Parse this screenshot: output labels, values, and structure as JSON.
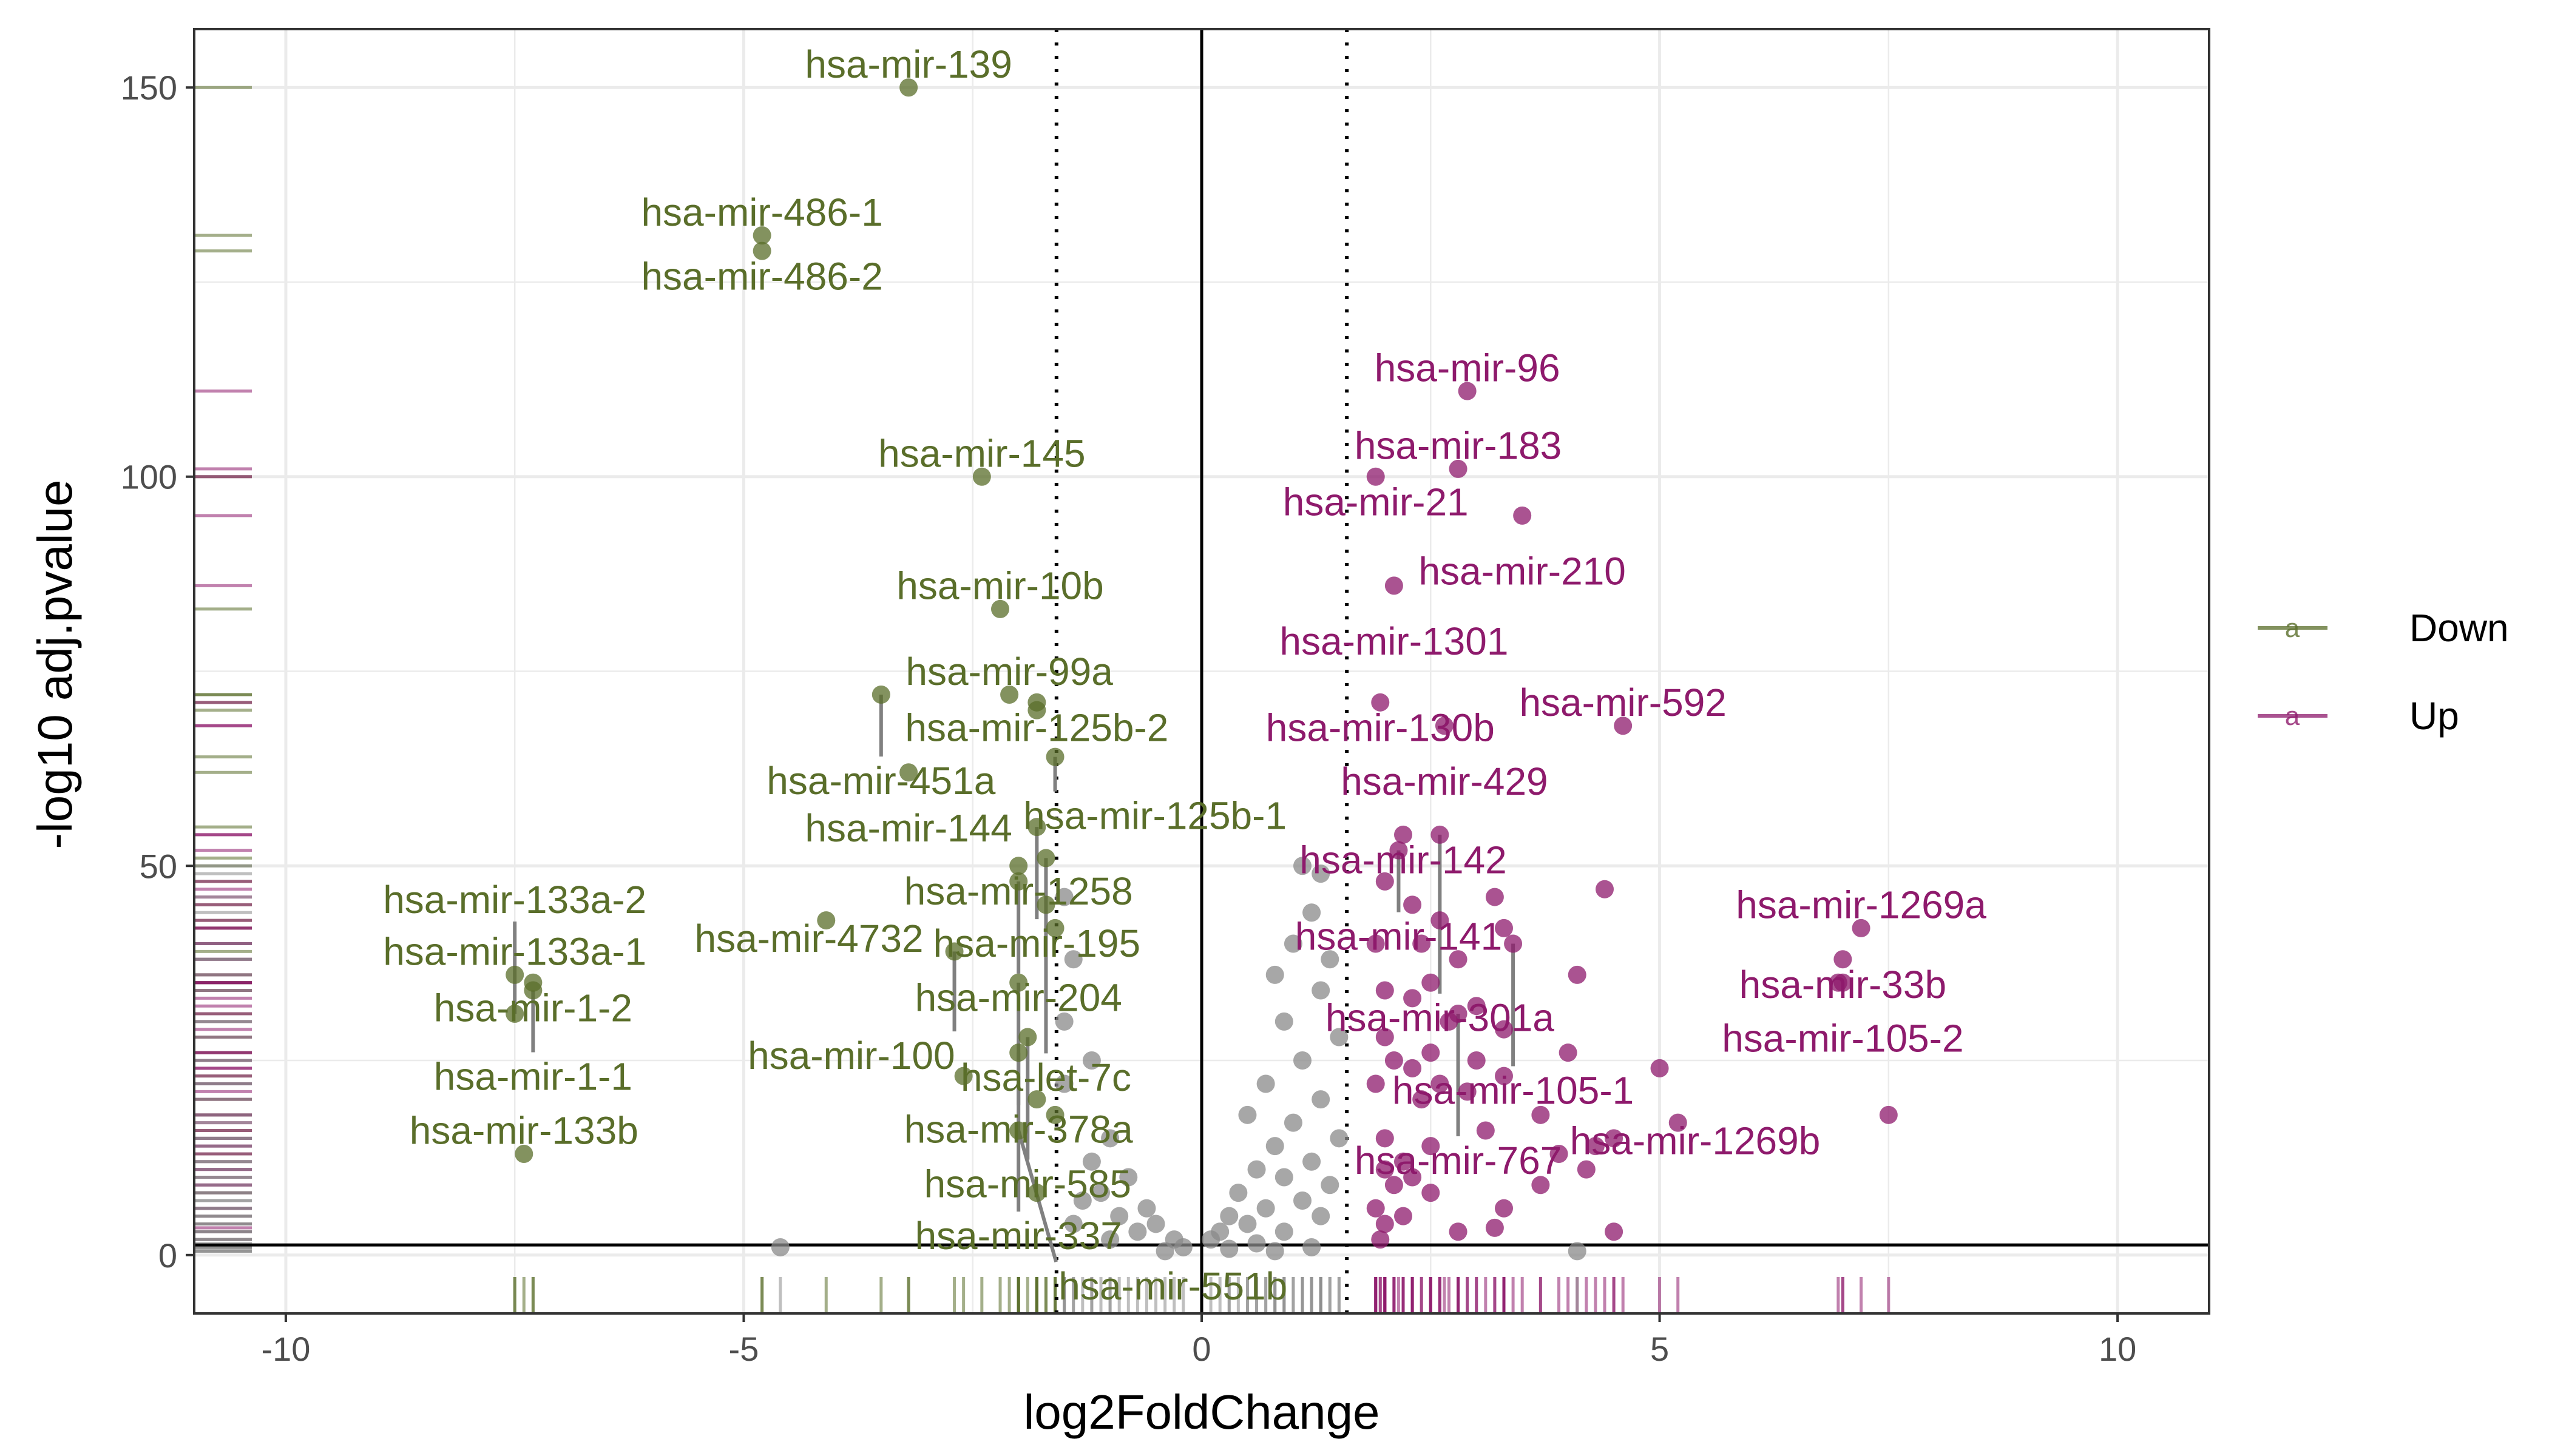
{
  "chart_data": {
    "type": "scatter",
    "title": "",
    "xlabel": "log2FoldChange",
    "ylabel": "-log10 adj.pvalue",
    "xlim": [
      -11,
      11
    ],
    "ylim": [
      -7.5,
      157.5
    ],
    "x_ticks": [
      -10,
      -5,
      0,
      5,
      10
    ],
    "y_ticks": [
      0,
      50,
      100,
      150
    ],
    "x_tick_labels": [
      "-10",
      "-5",
      "0",
      "5",
      "10"
    ],
    "y_tick_labels": [
      "0",
      "50",
      "100",
      "150"
    ],
    "grid": true,
    "vlines": {
      "solid": 0,
      "dotted": [
        -1.585,
        1.585
      ]
    },
    "hline": 1.3,
    "legend": {
      "position": "right",
      "key_glyph": "a",
      "entries": [
        {
          "name": "Down",
          "color": "#5a6e2a"
        },
        {
          "name": "Up",
          "color": "#8e1a6c"
        }
      ]
    },
    "colors": {
      "Down": "#5a6e2a",
      "Up": "#8e1a6c",
      "NS": "#8a8a8a",
      "axis": "#000000",
      "grid": "#ebebeb",
      "panel_border": "#333333",
      "tick_text": "#4d4d4d"
    },
    "series": [
      {
        "group": "Down",
        "points": [
          {
            "x": -3.2,
            "y": 150,
            "label": "hsa-mir-139"
          },
          {
            "x": -4.8,
            "y": 131,
            "label": "hsa-mir-486-1"
          },
          {
            "x": -4.8,
            "y": 129,
            "label": "hsa-mir-486-2"
          },
          {
            "x": -2.4,
            "y": 100,
            "label": "hsa-mir-145"
          },
          {
            "x": -2.2,
            "y": 83,
            "label": "hsa-mir-10b"
          },
          {
            "x": -2.1,
            "y": 72,
            "label": "hsa-mir-99a"
          },
          {
            "x": -1.8,
            "y": 71,
            "label": "hsa-mir-125b-2"
          },
          {
            "x": -3.5,
            "y": 72,
            "label": "hsa-mir-451a"
          },
          {
            "x": -1.8,
            "y": 70,
            "label": ""
          },
          {
            "x": -3.2,
            "y": 62,
            "label": "hsa-mir-144"
          },
          {
            "x": -1.6,
            "y": 64,
            "label": "hsa-mir-125b-1"
          },
          {
            "x": -2.0,
            "y": 50,
            "label": "hsa-mir-1258"
          },
          {
            "x": -1.8,
            "y": 55,
            "label": "hsa-mir-195"
          },
          {
            "x": -2.0,
            "y": 48,
            "label": "hsa-mir-204"
          },
          {
            "x": -1.7,
            "y": 51,
            "label": "hsa-let-7c"
          },
          {
            "x": -4.1,
            "y": 43,
            "label": "hsa-mir-4732"
          },
          {
            "x": -2.7,
            "y": 39,
            "label": "hsa-mir-100"
          },
          {
            "x": -1.7,
            "y": 45,
            "label": ""
          },
          {
            "x": -1.6,
            "y": 42,
            "label": ""
          },
          {
            "x": -7.5,
            "y": 36,
            "label": "hsa-mir-133a-1"
          },
          {
            "x": -7.3,
            "y": 35,
            "label": "hsa-mir-1-2"
          },
          {
            "x": -7.3,
            "y": 34,
            "label": "hsa-mir-1-1"
          },
          {
            "x": -2.0,
            "y": 35,
            "label": "hsa-mir-378a"
          },
          {
            "x": -1.9,
            "y": 28,
            "label": "hsa-mir-585"
          },
          {
            "x": -7.5,
            "y": 31,
            "label": "hsa-mir-133a-2"
          },
          {
            "x": -2.0,
            "y": 26,
            "label": "hsa-mir-337"
          },
          {
            "x": -2.6,
            "y": 23,
            "label": ""
          },
          {
            "x": -1.8,
            "y": 20,
            "label": ""
          },
          {
            "x": -1.6,
            "y": 18,
            "label": ""
          },
          {
            "x": -2.0,
            "y": 16,
            "label": "hsa-mir-551b"
          },
          {
            "x": -7.4,
            "y": 13,
            "label": "hsa-mir-133b"
          },
          {
            "x": -1.8,
            "y": 8,
            "label": ""
          }
        ]
      },
      {
        "group": "Up",
        "points": [
          {
            "x": 2.9,
            "y": 111,
            "label": "hsa-mir-96"
          },
          {
            "x": 2.8,
            "y": 101,
            "label": "hsa-mir-183"
          },
          {
            "x": 1.9,
            "y": 100,
            "label": "hsa-mir-21"
          },
          {
            "x": 3.5,
            "y": 95,
            "label": "hsa-mir-210"
          },
          {
            "x": 2.1,
            "y": 86,
            "label": "hsa-mir-1301"
          },
          {
            "x": 1.95,
            "y": 71,
            "label": "hsa-mir-130b"
          },
          {
            "x": 4.6,
            "y": 68,
            "label": "hsa-mir-592"
          },
          {
            "x": 2.65,
            "y": 68,
            "label": "hsa-mir-429"
          },
          {
            "x": 2.2,
            "y": 54,
            "label": "hsa-mir-142"
          },
          {
            "x": 2.15,
            "y": 52,
            "label": "hsa-mir-141"
          },
          {
            "x": 2.6,
            "y": 54,
            "label": "hsa-mir-301a"
          },
          {
            "x": 7.2,
            "y": 42,
            "label": "hsa-mir-1269a"
          },
          {
            "x": 7.0,
            "y": 38,
            "label": "hsa-mir-33b"
          },
          {
            "x": 4.4,
            "y": 47,
            "label": ""
          },
          {
            "x": 3.2,
            "y": 46,
            "label": ""
          },
          {
            "x": 3.4,
            "y": 40,
            "label": "hsa-mir-105-1"
          },
          {
            "x": 3.3,
            "y": 42,
            "label": ""
          },
          {
            "x": 2.0,
            "y": 48,
            "label": ""
          },
          {
            "x": 2.3,
            "y": 45,
            "label": ""
          },
          {
            "x": 2.6,
            "y": 43,
            "label": ""
          },
          {
            "x": 1.9,
            "y": 40,
            "label": ""
          },
          {
            "x": 2.4,
            "y": 40,
            "label": ""
          },
          {
            "x": 2.8,
            "y": 38,
            "label": ""
          },
          {
            "x": 4.1,
            "y": 36,
            "label": ""
          },
          {
            "x": 2.5,
            "y": 35,
            "label": ""
          },
          {
            "x": 2.0,
            "y": 34,
            "label": ""
          },
          {
            "x": 7.0,
            "y": 35,
            "label": "hsa-mir-105-2"
          },
          {
            "x": 6.95,
            "y": 35,
            "label": ""
          },
          {
            "x": 2.3,
            "y": 33,
            "label": ""
          },
          {
            "x": 2.8,
            "y": 31,
            "label": "hsa-mir-767"
          },
          {
            "x": 3.0,
            "y": 32,
            "label": ""
          },
          {
            "x": 2.7,
            "y": 30,
            "label": ""
          },
          {
            "x": 3.3,
            "y": 29,
            "label": ""
          },
          {
            "x": 2.0,
            "y": 28,
            "label": ""
          },
          {
            "x": 3.0,
            "y": 25,
            "label": ""
          },
          {
            "x": 4.0,
            "y": 26,
            "label": ""
          },
          {
            "x": 2.5,
            "y": 26,
            "label": ""
          },
          {
            "x": 2.1,
            "y": 25,
            "label": ""
          },
          {
            "x": 2.3,
            "y": 24,
            "label": ""
          },
          {
            "x": 5.0,
            "y": 24,
            "label": ""
          },
          {
            "x": 3.3,
            "y": 23,
            "label": ""
          },
          {
            "x": 2.6,
            "y": 22,
            "label": ""
          },
          {
            "x": 2.9,
            "y": 21,
            "label": ""
          },
          {
            "x": 1.9,
            "y": 22,
            "label": ""
          },
          {
            "x": 2.4,
            "y": 20,
            "label": ""
          },
          {
            "x": 3.7,
            "y": 18,
            "label": ""
          },
          {
            "x": 5.2,
            "y": 17,
            "label": "hsa-mir-1269b"
          },
          {
            "x": 7.5,
            "y": 18,
            "label": ""
          },
          {
            "x": 3.1,
            "y": 16,
            "label": ""
          },
          {
            "x": 4.3,
            "y": 14,
            "label": ""
          },
          {
            "x": 4.5,
            "y": 15,
            "label": ""
          },
          {
            "x": 2.0,
            "y": 15,
            "label": ""
          },
          {
            "x": 2.5,
            "y": 14,
            "label": ""
          },
          {
            "x": 3.9,
            "y": 13,
            "label": ""
          },
          {
            "x": 2.2,
            "y": 12,
            "label": ""
          },
          {
            "x": 2.0,
            "y": 11,
            "label": ""
          },
          {
            "x": 4.2,
            "y": 11,
            "label": ""
          },
          {
            "x": 2.3,
            "y": 10,
            "label": ""
          },
          {
            "x": 3.7,
            "y": 9,
            "label": ""
          },
          {
            "x": 2.1,
            "y": 9,
            "label": ""
          },
          {
            "x": 2.5,
            "y": 8,
            "label": ""
          },
          {
            "x": 3.3,
            "y": 6,
            "label": ""
          },
          {
            "x": 1.9,
            "y": 6,
            "label": ""
          },
          {
            "x": 2.2,
            "y": 5,
            "label": ""
          },
          {
            "x": 2.0,
            "y": 4,
            "label": ""
          },
          {
            "x": 3.2,
            "y": 3.5,
            "label": ""
          },
          {
            "x": 2.8,
            "y": 3,
            "label": ""
          },
          {
            "x": 4.5,
            "y": 3,
            "label": ""
          },
          {
            "x": 1.95,
            "y": 2,
            "label": ""
          }
        ]
      },
      {
        "group": "NS",
        "points": [
          {
            "x": -4.6,
            "y": 1,
            "label": ""
          },
          {
            "x": 4.1,
            "y": 0.5,
            "label": ""
          },
          {
            "x": -1.5,
            "y": 46,
            "label": ""
          },
          {
            "x": -1.4,
            "y": 38,
            "label": ""
          },
          {
            "x": -1.5,
            "y": 30,
            "label": ""
          },
          {
            "x": -1.2,
            "y": 25,
            "label": ""
          },
          {
            "x": -1.5,
            "y": 22,
            "label": ""
          },
          {
            "x": -1.0,
            "y": 15,
            "label": ""
          },
          {
            "x": -1.2,
            "y": 12,
            "label": ""
          },
          {
            "x": -0.8,
            "y": 10,
            "label": ""
          },
          {
            "x": -1.1,
            "y": 8,
            "label": ""
          },
          {
            "x": -1.3,
            "y": 7,
            "label": ""
          },
          {
            "x": -0.6,
            "y": 6,
            "label": ""
          },
          {
            "x": -0.9,
            "y": 5,
            "label": ""
          },
          {
            "x": -0.5,
            "y": 4,
            "label": ""
          },
          {
            "x": -0.7,
            "y": 3,
            "label": ""
          },
          {
            "x": -0.3,
            "y": 2,
            "label": ""
          },
          {
            "x": -0.2,
            "y": 1,
            "label": ""
          },
          {
            "x": -1.4,
            "y": 4,
            "label": ""
          },
          {
            "x": -1.0,
            "y": 2,
            "label": ""
          },
          {
            "x": -0.4,
            "y": 0.5,
            "label": ""
          },
          {
            "x": 1.1,
            "y": 50,
            "label": ""
          },
          {
            "x": 1.3,
            "y": 49,
            "label": ""
          },
          {
            "x": 1.2,
            "y": 44,
            "label": ""
          },
          {
            "x": 1.0,
            "y": 40,
            "label": ""
          },
          {
            "x": 1.4,
            "y": 38,
            "label": ""
          },
          {
            "x": 0.8,
            "y": 36,
            "label": ""
          },
          {
            "x": 1.3,
            "y": 34,
            "label": ""
          },
          {
            "x": 0.9,
            "y": 30,
            "label": ""
          },
          {
            "x": 1.5,
            "y": 28,
            "label": ""
          },
          {
            "x": 1.1,
            "y": 25,
            "label": ""
          },
          {
            "x": 0.7,
            "y": 22,
            "label": ""
          },
          {
            "x": 1.3,
            "y": 20,
            "label": ""
          },
          {
            "x": 0.5,
            "y": 18,
            "label": ""
          },
          {
            "x": 1.0,
            "y": 17,
            "label": ""
          },
          {
            "x": 1.5,
            "y": 15,
            "label": ""
          },
          {
            "x": 0.8,
            "y": 14,
            "label": ""
          },
          {
            "x": 1.2,
            "y": 12,
            "label": ""
          },
          {
            "x": 0.6,
            "y": 11,
            "label": ""
          },
          {
            "x": 0.9,
            "y": 10,
            "label": ""
          },
          {
            "x": 1.4,
            "y": 9,
            "label": ""
          },
          {
            "x": 0.4,
            "y": 8,
            "label": ""
          },
          {
            "x": 1.1,
            "y": 7,
            "label": ""
          },
          {
            "x": 0.7,
            "y": 6,
            "label": ""
          },
          {
            "x": 0.3,
            "y": 5,
            "label": ""
          },
          {
            "x": 1.3,
            "y": 5,
            "label": ""
          },
          {
            "x": 0.5,
            "y": 4,
            "label": ""
          },
          {
            "x": 0.2,
            "y": 3,
            "label": ""
          },
          {
            "x": 0.9,
            "y": 3,
            "label": ""
          },
          {
            "x": 0.1,
            "y": 2,
            "label": ""
          },
          {
            "x": 0.6,
            "y": 1.5,
            "label": ""
          },
          {
            "x": 1.2,
            "y": 1,
            "label": ""
          },
          {
            "x": 0.3,
            "y": 0.8,
            "label": ""
          },
          {
            "x": 0.8,
            "y": 0.5,
            "label": ""
          }
        ]
      }
    ]
  }
}
